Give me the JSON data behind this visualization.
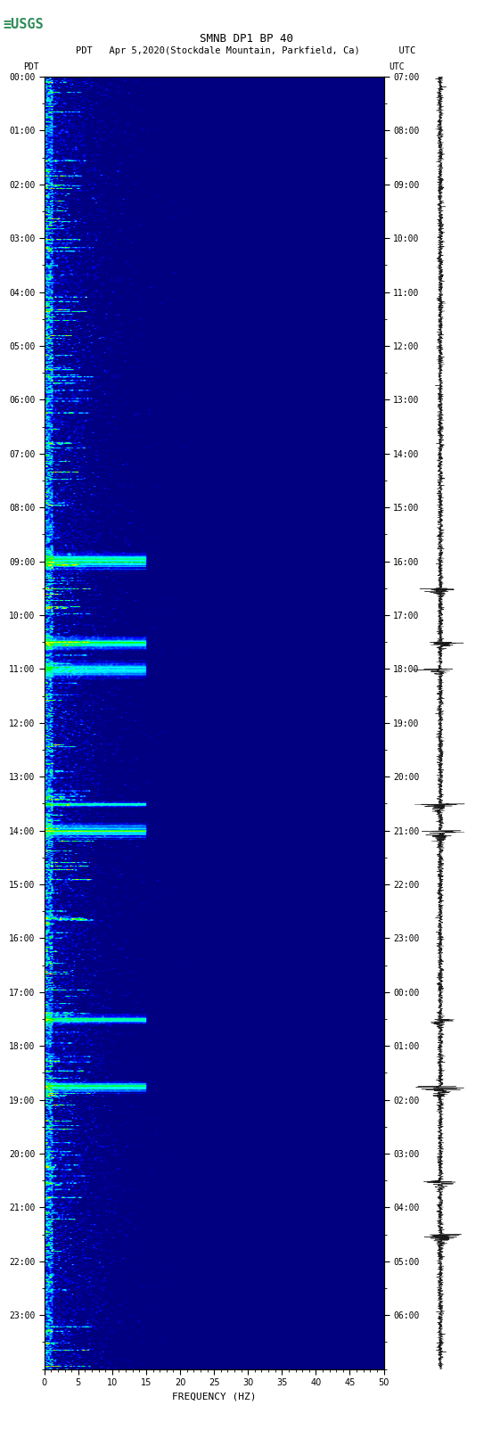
{
  "title_line1": "SMNB DP1 BP 40",
  "title_line2": "PDT   Apr 5,2020(Stockdale Mountain, Parkfield, Ca)       UTC",
  "xlabel": "FREQUENCY (HZ)",
  "left_yticks": [
    "00:00",
    "01:00",
    "02:00",
    "03:00",
    "04:00",
    "05:00",
    "06:00",
    "07:00",
    "08:00",
    "09:00",
    "10:00",
    "11:00",
    "12:00",
    "13:00",
    "14:00",
    "15:00",
    "16:00",
    "17:00",
    "18:00",
    "19:00",
    "20:00",
    "21:00",
    "22:00",
    "23:00"
  ],
  "right_yticks": [
    "07:00",
    "08:00",
    "09:00",
    "10:00",
    "11:00",
    "12:00",
    "13:00",
    "14:00",
    "15:00",
    "16:00",
    "17:00",
    "18:00",
    "19:00",
    "20:00",
    "21:00",
    "22:00",
    "23:00",
    "00:00",
    "01:00",
    "02:00",
    "03:00",
    "04:00",
    "05:00",
    "06:00"
  ],
  "freq_min": 0,
  "freq_max": 50,
  "freq_ticks": [
    0,
    5,
    10,
    15,
    20,
    25,
    30,
    35,
    40,
    45,
    50
  ],
  "time_hours": 24,
  "background_color": "#000080",
  "fig_bg": "#ffffff",
  "spectrogram_seed": 42,
  "waveform_color": "#000000",
  "waveform_bg": "#ffffff",
  "logo_color": "#2e8b57"
}
